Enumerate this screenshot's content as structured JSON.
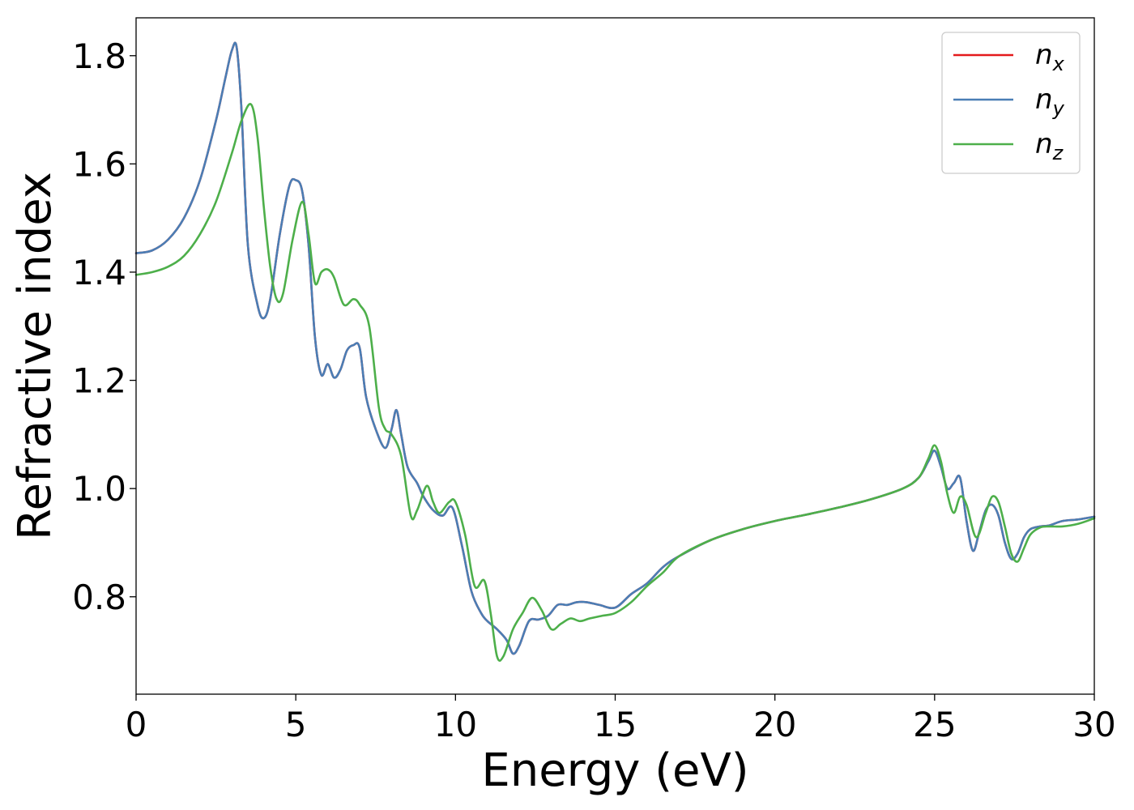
{
  "chart_data": {
    "type": "line",
    "xlabel": "Energy (eV)",
    "ylabel": "Refractive index",
    "xlim": [
      0,
      30
    ],
    "ylim": [
      0.62,
      1.87
    ],
    "xticks": [
      0,
      5,
      10,
      15,
      20,
      25,
      30
    ],
    "xtick_labels": [
      "0",
      "5",
      "10",
      "15",
      "20",
      "25",
      "30"
    ],
    "yticks": [
      0.8,
      1.0,
      1.2,
      1.4,
      1.6,
      1.8
    ],
    "ytick_labels": [
      "0.8",
      "1.0",
      "1.2",
      "1.4",
      "1.6",
      "1.8"
    ],
    "grid": false,
    "legend_position": "top-right",
    "series": [
      {
        "name": "n",
        "subscript": "x",
        "color": "#e41a1c",
        "x": [
          0,
          0.5,
          1.0,
          1.5,
          2.0,
          2.5,
          2.8,
          3.0,
          3.15,
          3.3,
          3.5,
          3.8,
          4.0,
          4.2,
          4.5,
          4.8,
          5.0,
          5.2,
          5.4,
          5.6,
          5.8,
          6.0,
          6.2,
          6.4,
          6.6,
          6.8,
          7.0,
          7.2,
          7.5,
          7.8,
          8.0,
          8.15,
          8.3,
          8.5,
          8.8,
          9.0,
          9.3,
          9.6,
          9.9,
          10.2,
          10.5,
          10.8,
          11.0,
          11.3,
          11.6,
          11.8,
          12.0,
          12.3,
          12.6,
          12.9,
          13.2,
          13.5,
          13.8,
          14.1,
          14.5,
          15.0,
          15.5,
          16.0,
          16.5,
          17.0,
          18.0,
          19.0,
          20.0,
          21.0,
          22.0,
          23.0,
          24.0,
          24.5,
          24.8,
          25.0,
          25.2,
          25.4,
          25.6,
          25.8,
          26.0,
          26.2,
          26.4,
          26.6,
          26.8,
          27.0,
          27.2,
          27.4,
          27.6,
          27.8,
          28.0,
          28.3,
          28.6,
          29.0,
          29.5,
          30.0
        ],
        "values": [
          1.435,
          1.44,
          1.46,
          1.5,
          1.57,
          1.68,
          1.76,
          1.81,
          1.815,
          1.7,
          1.45,
          1.34,
          1.315,
          1.35,
          1.47,
          1.56,
          1.57,
          1.55,
          1.45,
          1.28,
          1.21,
          1.23,
          1.205,
          1.22,
          1.255,
          1.265,
          1.26,
          1.17,
          1.11,
          1.075,
          1.11,
          1.145,
          1.1,
          1.04,
          1.01,
          0.985,
          0.96,
          0.95,
          0.965,
          0.895,
          0.81,
          0.77,
          0.755,
          0.74,
          0.72,
          0.695,
          0.71,
          0.755,
          0.758,
          0.765,
          0.785,
          0.785,
          0.79,
          0.79,
          0.785,
          0.78,
          0.805,
          0.825,
          0.855,
          0.875,
          0.905,
          0.925,
          0.94,
          0.952,
          0.965,
          0.98,
          1.0,
          1.02,
          1.05,
          1.07,
          1.04,
          1.0,
          1.01,
          1.02,
          0.94,
          0.885,
          0.92,
          0.96,
          0.97,
          0.95,
          0.9,
          0.87,
          0.88,
          0.91,
          0.925,
          0.93,
          0.932,
          0.94,
          0.943,
          0.948
        ]
      },
      {
        "name": "n",
        "subscript": "y",
        "color": "#4a7eb5",
        "x": [
          0,
          0.5,
          1.0,
          1.5,
          2.0,
          2.5,
          2.8,
          3.0,
          3.15,
          3.3,
          3.5,
          3.8,
          4.0,
          4.2,
          4.5,
          4.8,
          5.0,
          5.2,
          5.4,
          5.6,
          5.8,
          6.0,
          6.2,
          6.4,
          6.6,
          6.8,
          7.0,
          7.2,
          7.5,
          7.8,
          8.0,
          8.15,
          8.3,
          8.5,
          8.8,
          9.0,
          9.3,
          9.6,
          9.9,
          10.2,
          10.5,
          10.8,
          11.0,
          11.3,
          11.6,
          11.8,
          12.0,
          12.3,
          12.6,
          12.9,
          13.2,
          13.5,
          13.8,
          14.1,
          14.5,
          15.0,
          15.5,
          16.0,
          16.5,
          17.0,
          18.0,
          19.0,
          20.0,
          21.0,
          22.0,
          23.0,
          24.0,
          24.5,
          24.8,
          25.0,
          25.2,
          25.4,
          25.6,
          25.8,
          26.0,
          26.2,
          26.4,
          26.6,
          26.8,
          27.0,
          27.2,
          27.4,
          27.6,
          27.8,
          28.0,
          28.3,
          28.6,
          29.0,
          29.5,
          30.0
        ],
        "values": [
          1.435,
          1.44,
          1.46,
          1.5,
          1.57,
          1.68,
          1.76,
          1.81,
          1.815,
          1.7,
          1.45,
          1.34,
          1.315,
          1.35,
          1.47,
          1.56,
          1.57,
          1.55,
          1.45,
          1.28,
          1.21,
          1.23,
          1.205,
          1.22,
          1.255,
          1.265,
          1.26,
          1.17,
          1.11,
          1.075,
          1.11,
          1.145,
          1.1,
          1.04,
          1.01,
          0.985,
          0.96,
          0.95,
          0.965,
          0.895,
          0.81,
          0.77,
          0.755,
          0.74,
          0.72,
          0.695,
          0.71,
          0.755,
          0.758,
          0.765,
          0.785,
          0.785,
          0.79,
          0.79,
          0.785,
          0.78,
          0.805,
          0.825,
          0.855,
          0.875,
          0.905,
          0.925,
          0.94,
          0.952,
          0.965,
          0.98,
          1.0,
          1.02,
          1.05,
          1.07,
          1.04,
          1.0,
          1.01,
          1.02,
          0.94,
          0.885,
          0.92,
          0.96,
          0.97,
          0.95,
          0.9,
          0.87,
          0.88,
          0.91,
          0.925,
          0.93,
          0.932,
          0.94,
          0.943,
          0.948
        ]
      },
      {
        "name": "n",
        "subscript": "z",
        "color": "#4daf4a",
        "x": [
          0,
          0.5,
          1.0,
          1.5,
          2.0,
          2.5,
          3.0,
          3.3,
          3.6,
          3.8,
          4.0,
          4.2,
          4.4,
          4.6,
          4.9,
          5.2,
          5.4,
          5.6,
          5.8,
          6.0,
          6.2,
          6.5,
          6.8,
          7.0,
          7.3,
          7.6,
          7.8,
          8.0,
          8.3,
          8.6,
          8.8,
          9.1,
          9.3,
          9.5,
          9.8,
          10.0,
          10.3,
          10.6,
          10.9,
          11.1,
          11.3,
          11.5,
          11.8,
          12.1,
          12.4,
          12.7,
          13.0,
          13.3,
          13.6,
          13.9,
          14.2,
          14.6,
          15.0,
          15.5,
          16.0,
          16.5,
          17.0,
          18.0,
          19.0,
          20.0,
          21.0,
          22.0,
          23.0,
          24.0,
          24.5,
          24.8,
          25.0,
          25.2,
          25.4,
          25.6,
          25.8,
          26.0,
          26.3,
          26.6,
          26.8,
          27.0,
          27.2,
          27.4,
          27.6,
          27.8,
          28.0,
          28.3,
          28.6,
          29.0,
          29.5,
          30.0
        ],
        "values": [
          1.395,
          1.4,
          1.41,
          1.43,
          1.47,
          1.53,
          1.62,
          1.68,
          1.71,
          1.65,
          1.52,
          1.41,
          1.35,
          1.36,
          1.46,
          1.53,
          1.47,
          1.38,
          1.4,
          1.405,
          1.39,
          1.34,
          1.35,
          1.34,
          1.3,
          1.15,
          1.11,
          1.1,
          1.06,
          0.95,
          0.96,
          1.005,
          0.975,
          0.955,
          0.975,
          0.975,
          0.915,
          0.82,
          0.83,
          0.77,
          0.69,
          0.69,
          0.74,
          0.77,
          0.798,
          0.775,
          0.74,
          0.75,
          0.76,
          0.755,
          0.76,
          0.765,
          0.77,
          0.79,
          0.82,
          0.845,
          0.875,
          0.905,
          0.925,
          0.94,
          0.952,
          0.965,
          0.98,
          1.0,
          1.02,
          1.055,
          1.08,
          1.05,
          0.99,
          0.955,
          0.985,
          0.97,
          0.91,
          0.955,
          0.985,
          0.975,
          0.93,
          0.88,
          0.865,
          0.89,
          0.915,
          0.928,
          0.93,
          0.93,
          0.935,
          0.945
        ]
      }
    ]
  }
}
